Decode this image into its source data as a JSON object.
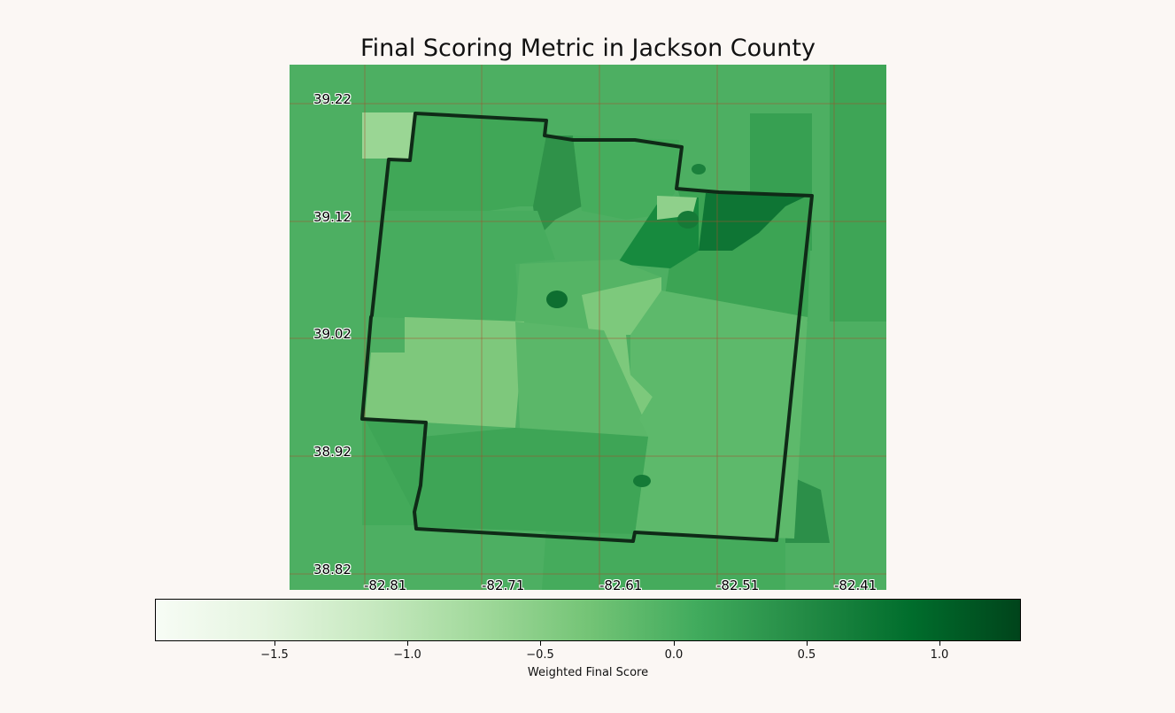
{
  "title": "Final Scoring Metric in Jackson County",
  "map": {
    "lat_labels": [
      "39.22",
      "39.12",
      "39.02",
      "38.92",
      "38.82"
    ],
    "lon_labels": [
      "-82.81",
      "-82.71",
      "-82.61",
      "-82.51",
      "-82.41"
    ],
    "boundary_color": "#0f2a17",
    "grid_color": "#a0522d"
  },
  "colorbar": {
    "label": "Weighted Final Score",
    "ticks": [
      "−1.5",
      "−1.0",
      "−0.5",
      "0.0",
      "0.5",
      "1.0"
    ],
    "range": [
      -1.95,
      1.3
    ],
    "colormap": "Greens",
    "colors": [
      "#f7fcf5",
      "#e5f5e0",
      "#c7e9c0",
      "#a1d99b",
      "#74c476",
      "#41ab5d",
      "#238b45",
      "#006d2c",
      "#00441b"
    ]
  }
}
